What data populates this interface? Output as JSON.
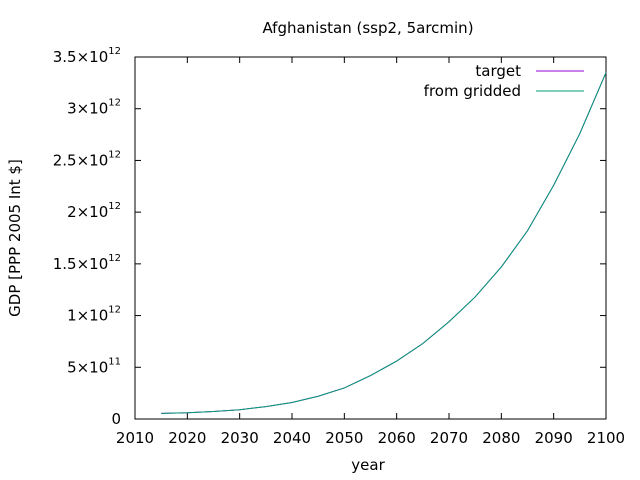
{
  "chart_data": {
    "type": "line",
    "title": "Afghanistan (ssp2, 5arcmin)",
    "xlabel": "year",
    "ylabel": "GDP [PPP 2005 Int $]",
    "xlim": [
      2010,
      2100
    ],
    "ylim": [
      0,
      3500000000000.0
    ],
    "grid": false,
    "legend_position": "top-right",
    "x_ticks": [
      2010,
      2020,
      2030,
      2040,
      2050,
      2060,
      2070,
      2080,
      2090,
      2100
    ],
    "x_tick_labels": [
      "2010",
      "2020",
      "2030",
      "2040",
      "2050",
      "2060",
      "2070",
      "2080",
      "2090",
      "2100"
    ],
    "y_ticks": [
      {
        "value": 0,
        "mant": "0",
        "exp": ""
      },
      {
        "value": 500000000000.0,
        "mant": "5×10",
        "exp": "11"
      },
      {
        "value": 1000000000000.0,
        "mant": "1×10",
        "exp": "12"
      },
      {
        "value": 1500000000000.0,
        "mant": "1.5×10",
        "exp": "12"
      },
      {
        "value": 2000000000000.0,
        "mant": "2×10",
        "exp": "12"
      },
      {
        "value": 2500000000000.0,
        "mant": "2.5×10",
        "exp": "12"
      },
      {
        "value": 3000000000000.0,
        "mant": "3×10",
        "exp": "12"
      },
      {
        "value": 3500000000000.0,
        "mant": "3.5×10",
        "exp": "12"
      }
    ],
    "x": [
      2015,
      2020,
      2025,
      2030,
      2035,
      2040,
      2045,
      2050,
      2055,
      2060,
      2065,
      2070,
      2075,
      2080,
      2085,
      2090,
      2095,
      2100
    ],
    "series": [
      {
        "name": "target",
        "color": "#9400d3",
        "values": [
          54000000000.0,
          60000000000.0,
          72000000000.0,
          90000000000.0,
          120000000000.0,
          160000000000.0,
          220000000000.0,
          300000000000.0,
          420000000000.0,
          560000000000.0,
          730000000000.0,
          940000000000.0,
          1180000000000.0,
          1470000000000.0,
          1820000000000.0,
          2260000000000.0,
          2760000000000.0,
          3350000000000.0
        ]
      },
      {
        "name": "from gridded",
        "color": "#009e73",
        "values": [
          54000000000.0,
          60000000000.0,
          72000000000.0,
          90000000000.0,
          120000000000.0,
          160000000000.0,
          220000000000.0,
          300000000000.0,
          420000000000.0,
          560000000000.0,
          730000000000.0,
          940000000000.0,
          1180000000000.0,
          1470000000000.0,
          1820000000000.0,
          2260000000000.0,
          2760000000000.0,
          3350000000000.0
        ]
      }
    ]
  }
}
